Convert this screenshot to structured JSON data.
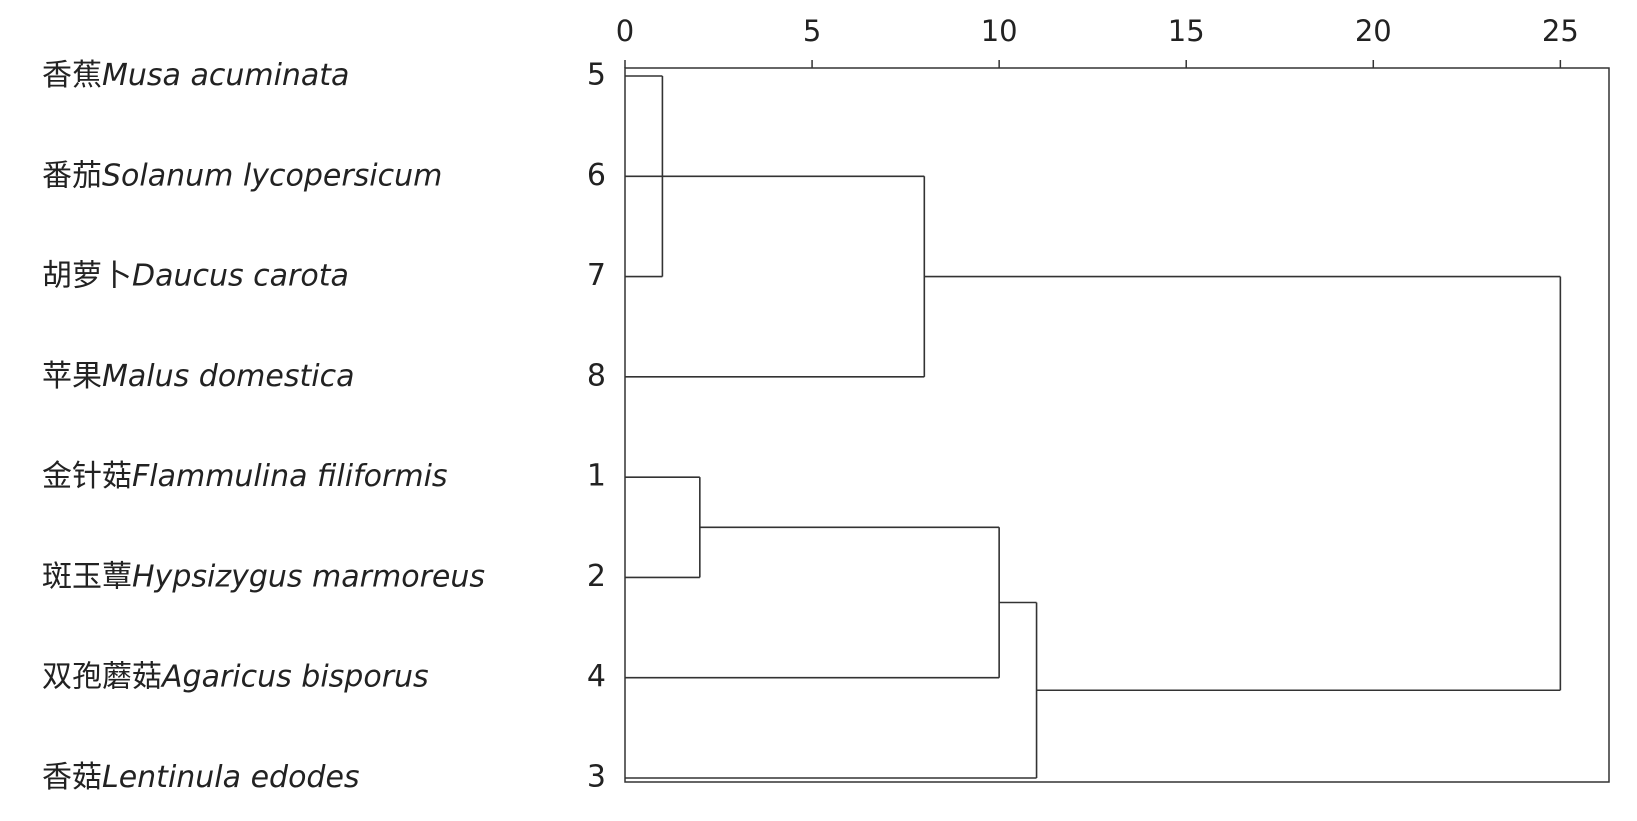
{
  "chart_data": {
    "type": "dendrogram",
    "xlim": [
      0,
      26.3
    ],
    "xticks": [
      0,
      5,
      10,
      15,
      20,
      25
    ],
    "leaves": [
      {
        "id": "5",
        "cn": "香蕉",
        "latin": "Musa acuminata"
      },
      {
        "id": "6",
        "cn": "番茄",
        "latin": "Solanum lycopersicum"
      },
      {
        "id": "7",
        "cn": "胡萝卜",
        "latin": "Daucus carota"
      },
      {
        "id": "8",
        "cn": "苹果",
        "latin": "Malus domestica"
      },
      {
        "id": "1",
        "cn": "金针菇",
        "latin": "Flammulina filiformis"
      },
      {
        "id": "2",
        "cn": "斑玉蕈",
        "latin": "Hypsizygus marmoreus"
      },
      {
        "id": "4",
        "cn": "双孢蘑菇",
        "latin": "Agaricus bisporus"
      },
      {
        "id": "3",
        "cn": "香菇",
        "latin": "Lentinula edodes"
      }
    ],
    "tree": {
      "height": 25,
      "children": [
        {
          "height": 8,
          "children": [
            {
              "height": 1,
              "children": [
                "5",
                "6",
                "7"
              ]
            },
            "8"
          ]
        },
        {
          "height": 11,
          "children": [
            {
              "height": 10,
              "children": [
                {
                  "height": 2,
                  "children": [
                    "1",
                    "2"
                  ]
                },
                "4"
              ]
            },
            "3"
          ]
        }
      ]
    }
  }
}
